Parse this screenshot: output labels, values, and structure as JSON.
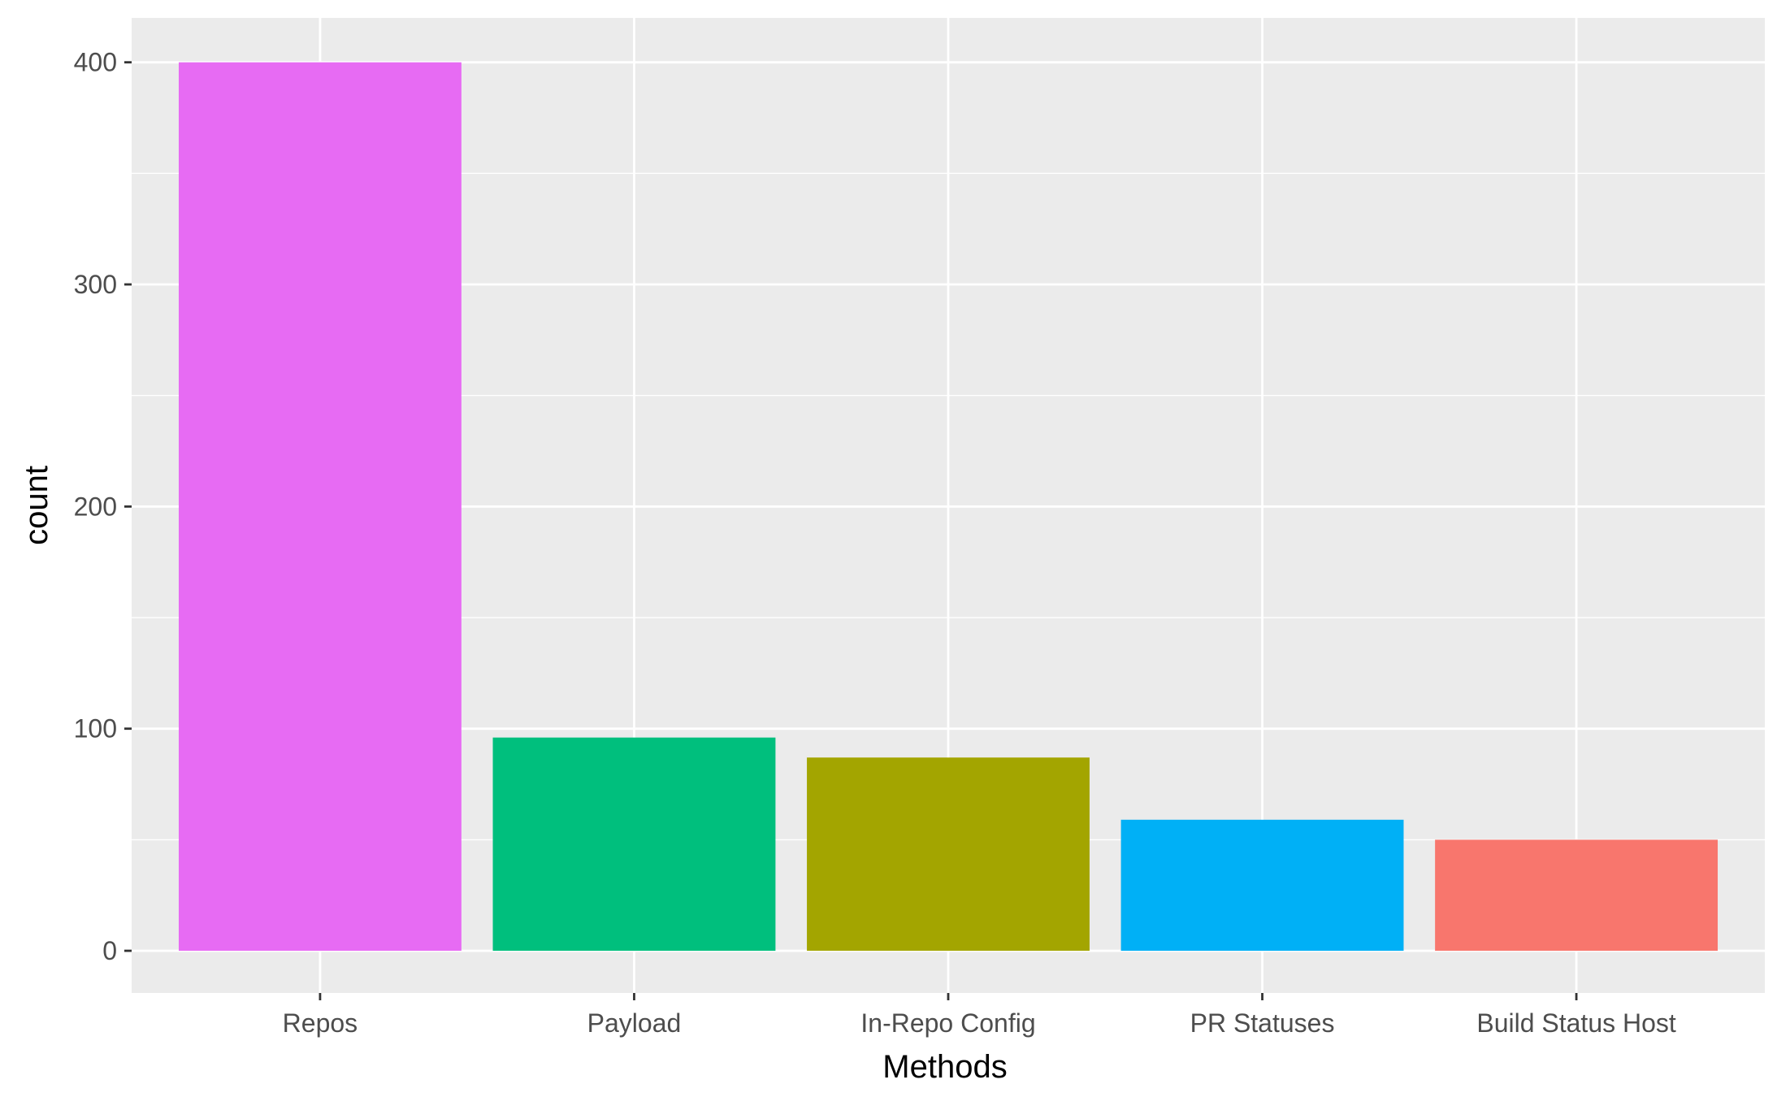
{
  "chart_data": {
    "type": "bar",
    "title": "",
    "xlabel": "Methods",
    "ylabel": "count",
    "categories": [
      "Repos",
      "Payload",
      "In-Repo Config",
      "PR Statuses",
      "Build Status Host"
    ],
    "values": [
      400,
      96,
      87,
      59,
      50
    ],
    "colors": [
      "#E76BF3",
      "#00BF7D",
      "#A3A500",
      "#00B0F6",
      "#F8766D"
    ],
    "ylim": [
      -19,
      420
    ],
    "yticks": [
      0,
      100,
      200,
      300,
      400
    ],
    "grid": true,
    "legend": "none",
    "panel_background": "#EBEBEB",
    "grid_color": "#FFFFFF"
  }
}
